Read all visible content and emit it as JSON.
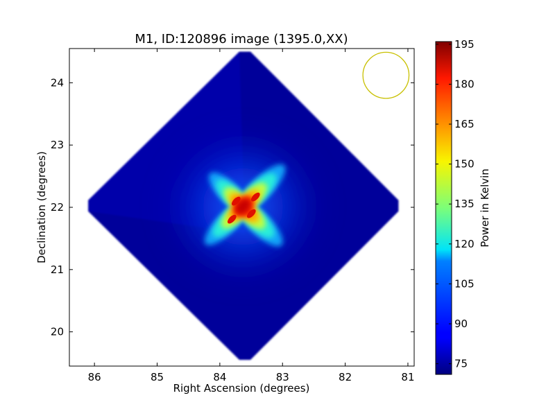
{
  "chart_data": {
    "type": "heatmap",
    "title": "M1, ID:120896 image (1395.0,XX)",
    "xlabel": "Right Ascension (degrees)",
    "ylabel": "Declination (degrees)",
    "xlim": [
      86.4,
      80.9
    ],
    "ylim": [
      19.45,
      24.55
    ],
    "xticks": [
      86,
      85,
      84,
      83,
      82,
      81
    ],
    "yticks": [
      20,
      21,
      22,
      23,
      24
    ],
    "colorbar": {
      "label": "Power in Kelvin",
      "range": [
        71,
        196
      ],
      "ticks": [
        75,
        90,
        105,
        120,
        135,
        150,
        165,
        180,
        195
      ],
      "colormap": "jet"
    },
    "footprint": {
      "shape": "diamond",
      "center": [
        83.6,
        22.0
      ],
      "ra_extent": [
        81.15,
        86.1
      ],
      "dec_extent": [
        19.55,
        24.5
      ],
      "background_level": 75
    },
    "source": {
      "name": "M1",
      "center": [
        83.63,
        22.01
      ],
      "peak_level": 190,
      "pattern": "cross-shaped beam sidelobes along diagonals"
    },
    "beam_circle": {
      "center": [
        81.35,
        24.12
      ],
      "radius_deg": 0.37,
      "color": "#c8c000"
    }
  }
}
